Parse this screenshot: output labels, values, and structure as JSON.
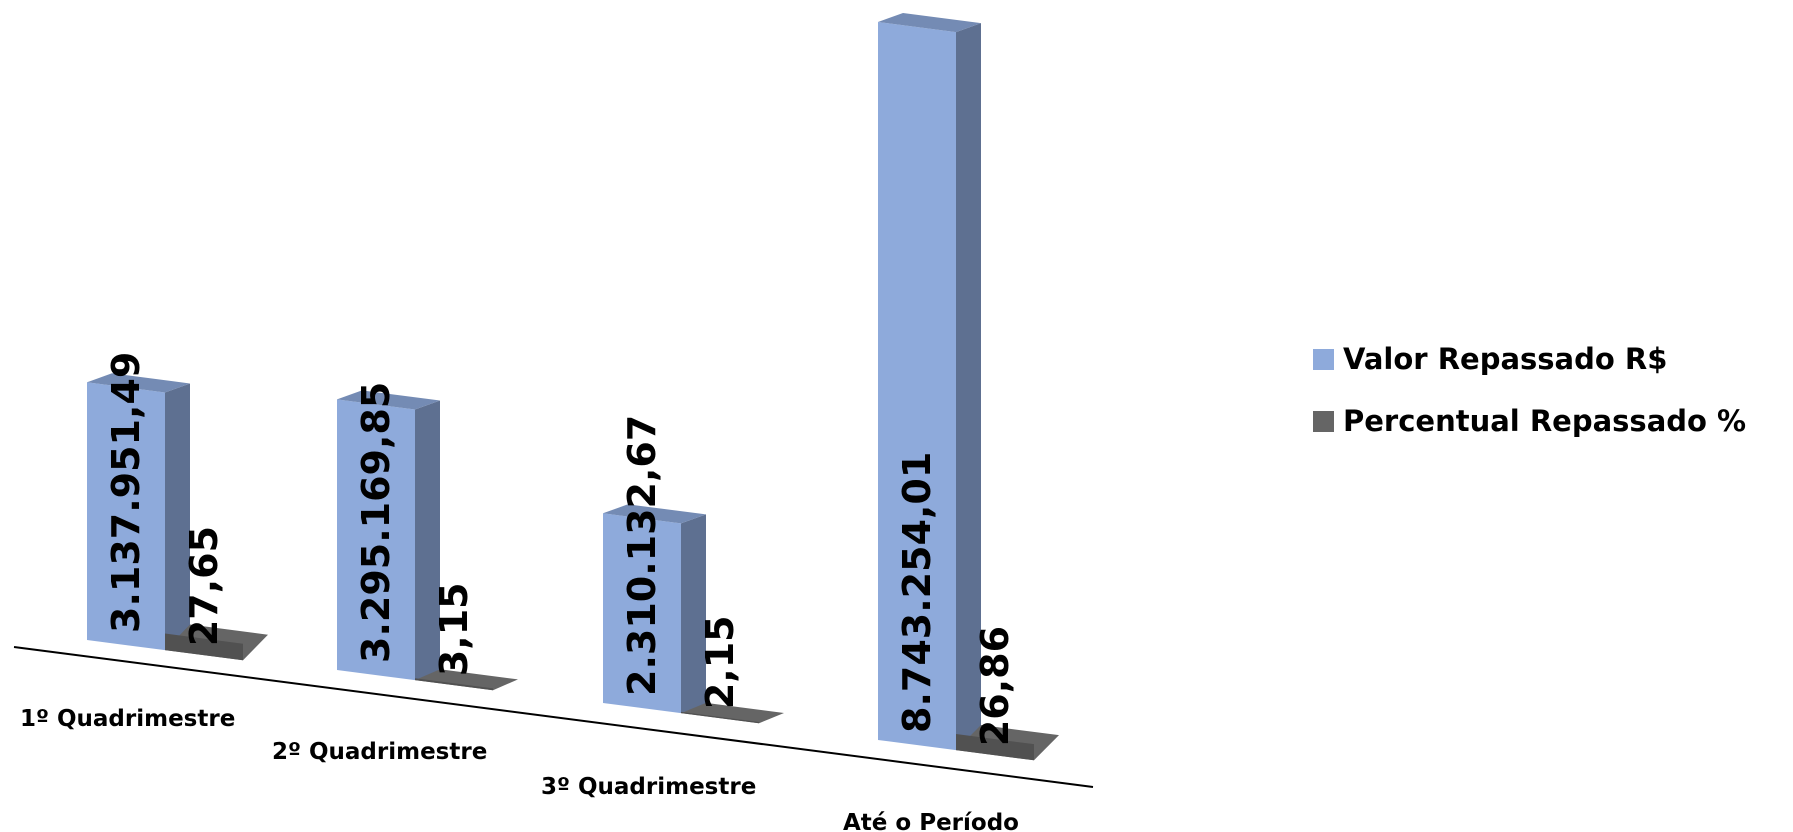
{
  "chart_data": {
    "type": "bar",
    "categories": [
      "1º Quadrimestre",
      "2º Quadrimestre",
      "3º Quadrimestre",
      "Até o Período"
    ],
    "series": [
      {
        "name": "Valor Repassado R$",
        "color": "#8EAADB",
        "values": [
          3137951.49,
          3295169.85,
          2310132.67,
          8743254.01
        ],
        "labels": [
          "3.137.951,49",
          "3.295.169,85",
          "2.310.132,67",
          "8.743.254,01"
        ]
      },
      {
        "name": "Percentual Repassado %",
        "color": "#656565",
        "values": [
          27.65,
          3.15,
          2.15,
          26.86
        ],
        "labels": [
          "27,65",
          "3,15",
          "2,15",
          "26,86"
        ]
      }
    ],
    "title": "",
    "xlabel": "",
    "ylabel": "",
    "legend_position": "right",
    "grid": false,
    "style": "3d-column"
  }
}
